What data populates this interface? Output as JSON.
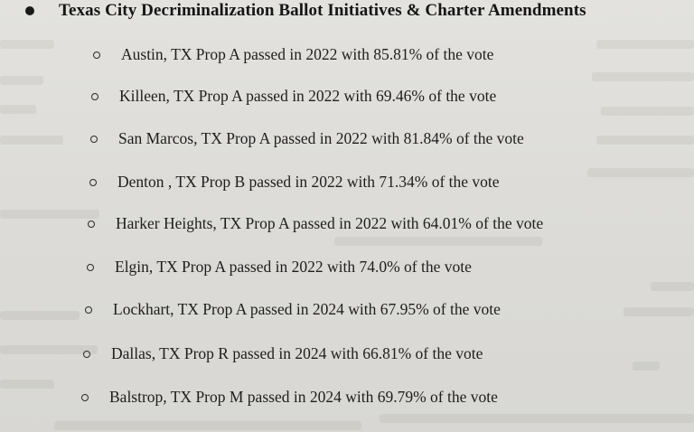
{
  "heading": {
    "bullet_icon": "filled-circle-bullet",
    "title": "Texas City Decriminalization Ballot Initiatives & Charter Amendments"
  },
  "items": [
    {
      "bullet_icon": "hollow-circle-bullet",
      "text": "Austin, TX Prop A passed in 2022 with 85.81% of the vote"
    },
    {
      "bullet_icon": "hollow-circle-bullet",
      "text": "Killeen, TX Prop A passed in 2022 with 69.46% of the vote"
    },
    {
      "bullet_icon": "hollow-circle-bullet",
      "text": "San Marcos, TX Prop A passed in 2022 with 81.84% of the vote"
    },
    {
      "bullet_icon": "hollow-circle-bullet",
      "text": "Denton , TX Prop B passed in 2022 with 71.34% of the vote"
    },
    {
      "bullet_icon": "hollow-circle-bullet",
      "text": "Harker Heights, TX Prop A passed in 2022 with 64.01% of the vote"
    },
    {
      "bullet_icon": "hollow-circle-bullet",
      "text": "Elgin, TX Prop A passed in 2022 with 74.0% of the vote"
    },
    {
      "bullet_icon": "hollow-circle-bullet",
      "text": "Lockhart, TX Prop A passed in 2024 with 67.95% of the vote"
    },
    {
      "bullet_icon": "hollow-circle-bullet",
      "text": "Dallas, TX Prop R passed in 2024 with 66.81% of the vote"
    },
    {
      "bullet_icon": "hollow-circle-bullet",
      "text": "Balstrop, TX Prop M passed in 2024 with 69.79% of the vote"
    }
  ],
  "colors": {
    "paper": "#dddcd8",
    "ink": "#1c1c1c"
  }
}
